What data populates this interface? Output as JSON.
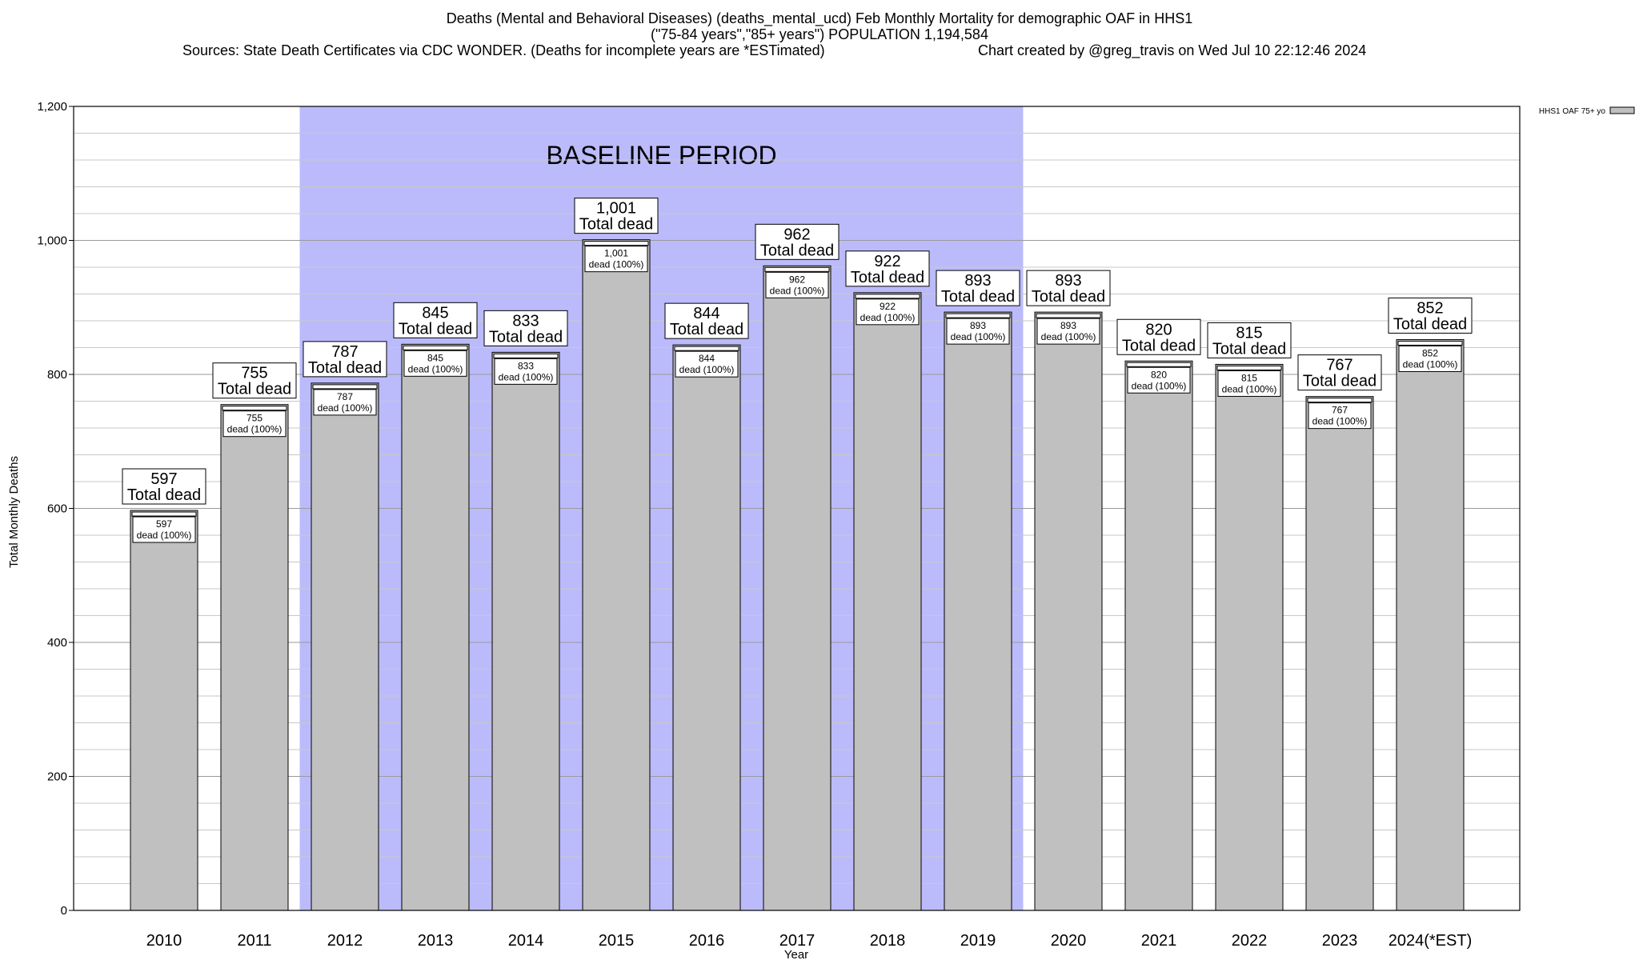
{
  "chart_data": {
    "type": "bar",
    "title": "Deaths (Mental and Behavioral Diseases) (deaths_mental_ucd) Feb Monthly Mortality for demographic OAF in HHS1",
    "subtitle": "(\"75-84 years\",\"85+ years\") POPULATION 1,194,584",
    "sources": "Sources: State Death Certificates via CDC WONDER. (Deaths for incomplete years are *ESTimated)",
    "credit": "Chart created by @greg_travis on Wed Jul 10 22:12:46 2024",
    "xlabel": "Year",
    "ylabel": "Total Monthly Deaths",
    "ylim": [
      0,
      1200
    ],
    "yticks": [
      0,
      200,
      400,
      600,
      800,
      1000,
      1200
    ],
    "ytick_labels": [
      "0",
      "200",
      "400",
      "600",
      "800",
      "1,000",
      "1,200"
    ],
    "minor_grid_step": 40,
    "grid": true,
    "categories": [
      "2010",
      "2011",
      "2012",
      "2013",
      "2014",
      "2015",
      "2016",
      "2017",
      "2018",
      "2019",
      "2020",
      "2021",
      "2022",
      "2023",
      "2024(*EST)"
    ],
    "series": [
      {
        "name": "HHS1 OAF 75+ yo",
        "values": [
          597,
          755,
          787,
          845,
          833,
          1001,
          844,
          962,
          922,
          893,
          893,
          820,
          815,
          767,
          852
        ],
        "value_labels": [
          "597",
          "755",
          "787",
          "845",
          "833",
          "1,001",
          "844",
          "962",
          "922",
          "893",
          "893",
          "820",
          "815",
          "767",
          "852"
        ],
        "color": "#c0c0c0"
      }
    ],
    "total_label_suffix": "Total dead",
    "inner_label_suffix": "dead (100%)",
    "baseline": {
      "label": "BASELINE PERIOD",
      "start": "2012",
      "end": "2019",
      "color": "#bbbbfb"
    },
    "legend": {
      "position": "top-right",
      "entries": [
        "HHS1 OAF 75+ yo"
      ]
    }
  }
}
